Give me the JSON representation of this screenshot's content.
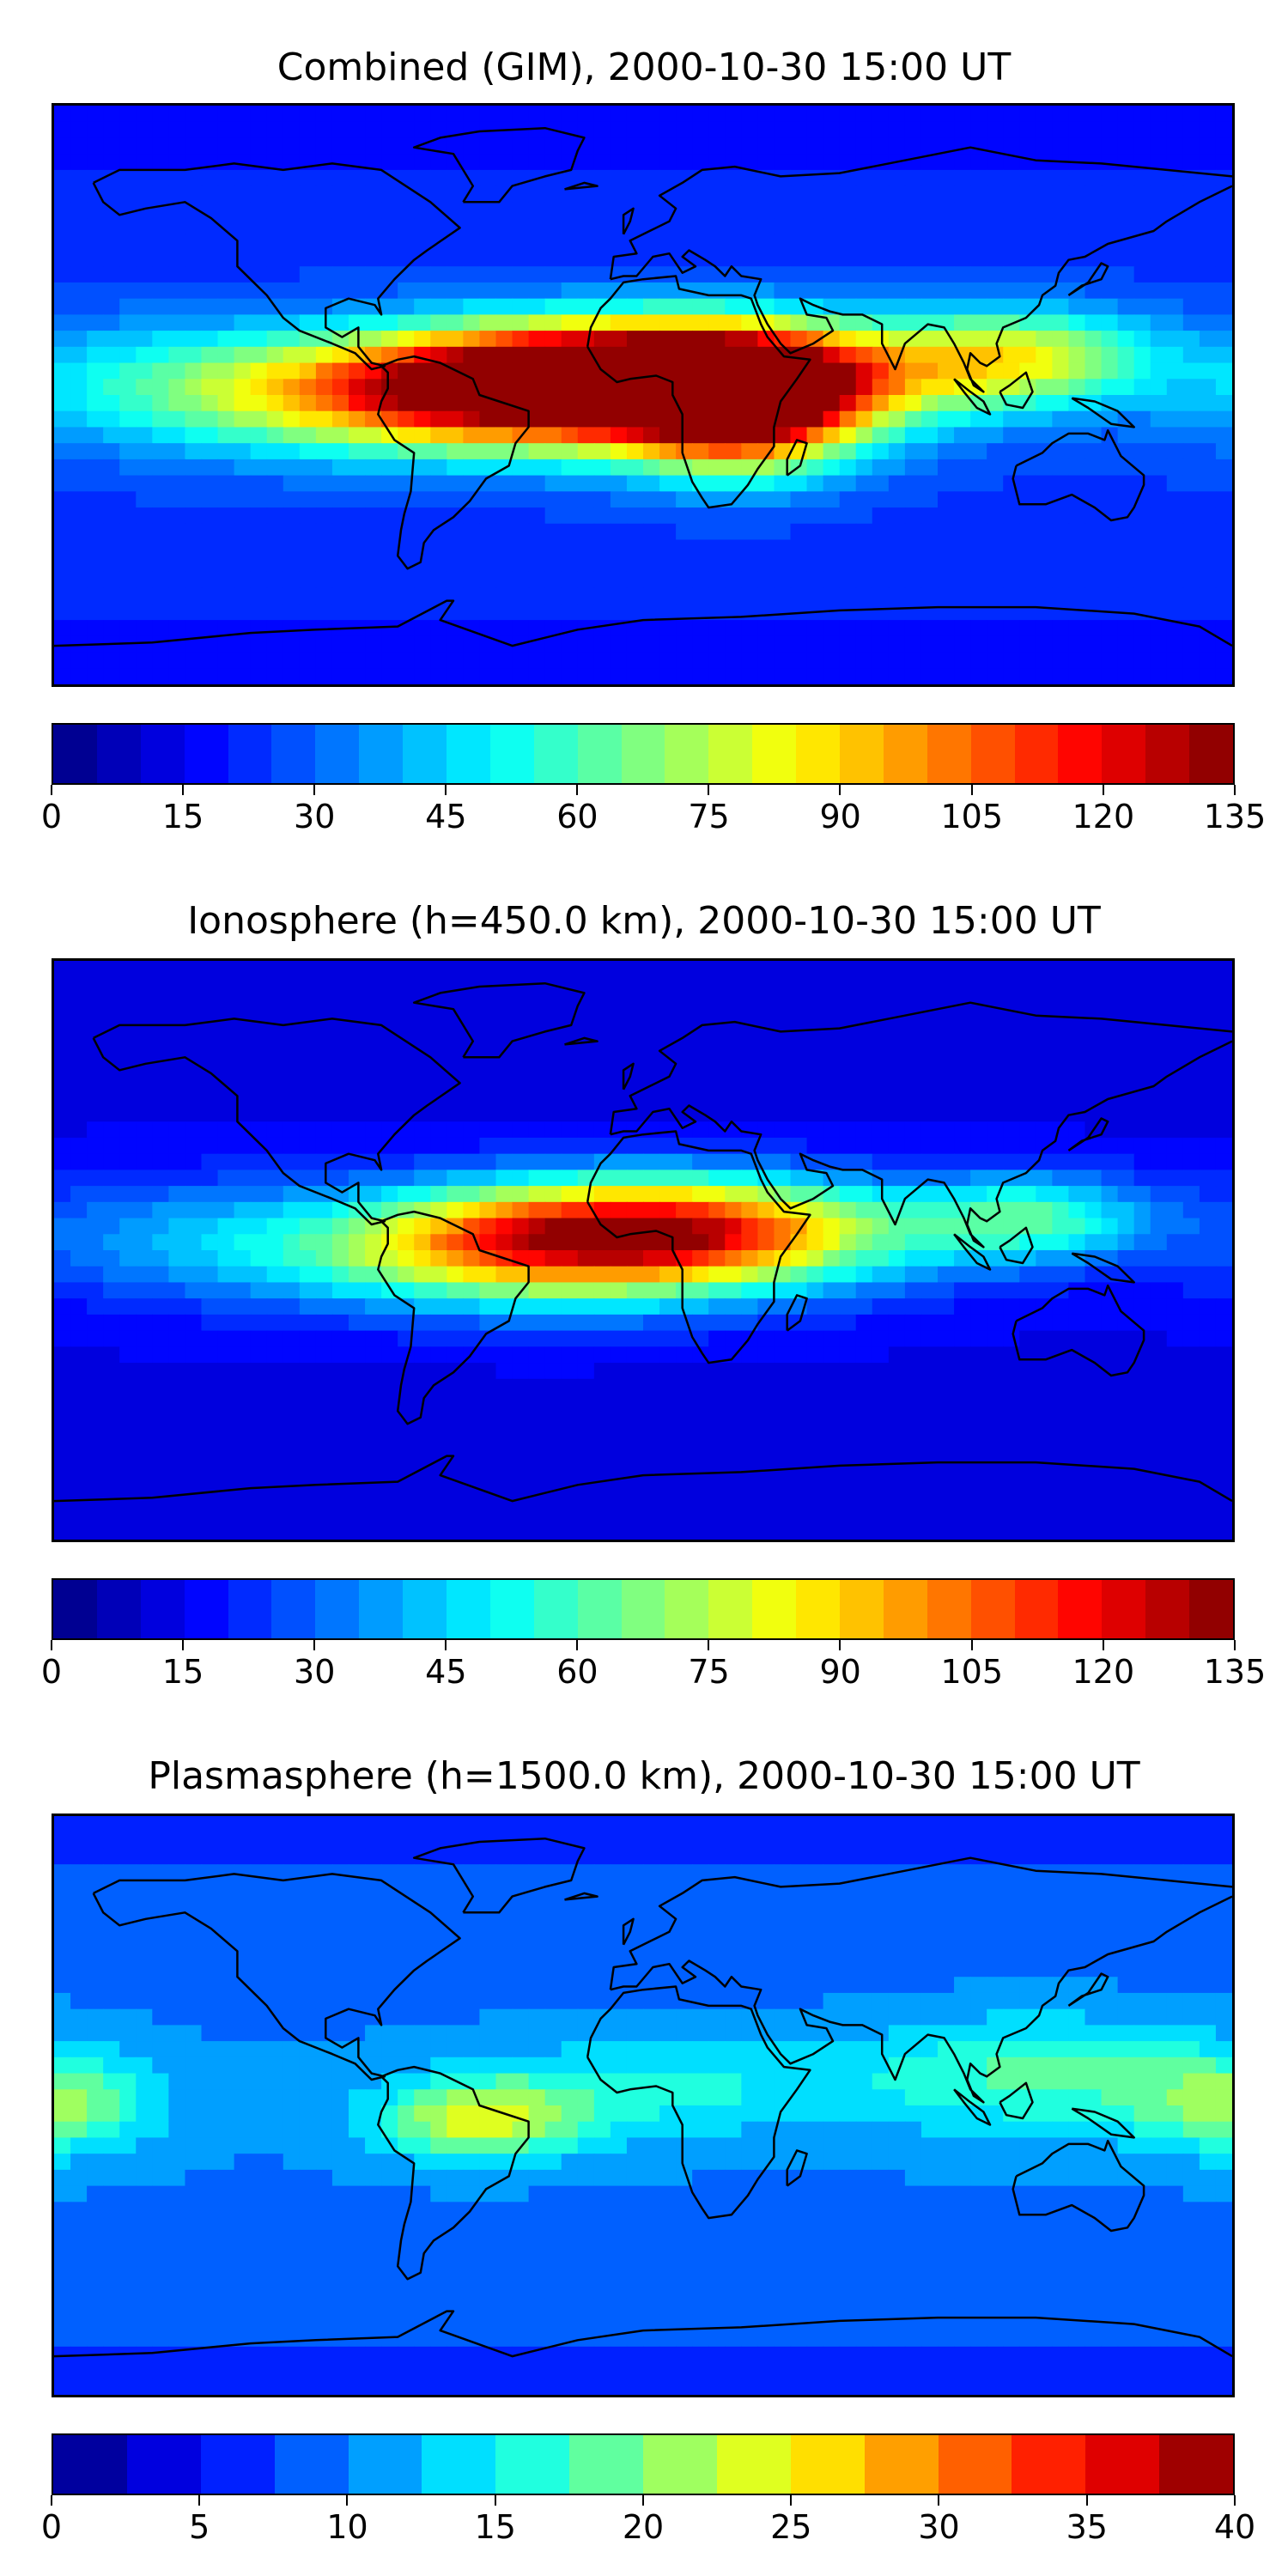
{
  "chart_data": [
    {
      "type": "heatmap",
      "title": "Combined (GIM), 2000-10-30 15:00 UT",
      "colorbar": {
        "min": 0,
        "max": 135,
        "step": 5,
        "tick_labels": [
          "0",
          "15",
          "30",
          "45",
          "60",
          "75",
          "90",
          "105",
          "120",
          "135"
        ]
      },
      "xlim": [
        -180,
        180
      ],
      "ylim": [
        -90,
        90
      ],
      "blobs": [
        {
          "lon": -40,
          "lat": 0,
          "value": 125,
          "spread_lon": 90,
          "spread_lat": 18
        },
        {
          "lon": 5,
          "lat": 8,
          "value": 120,
          "spread_lon": 75,
          "spread_lat": 16
        },
        {
          "lon": 30,
          "lat": -5,
          "value": 105,
          "spread_lon": 35,
          "spread_lat": 20
        },
        {
          "lon": 115,
          "lat": 12,
          "value": 75,
          "spread_lon": 40,
          "spread_lat": 15
        },
        {
          "lon": -150,
          "lat": 5,
          "value": 40,
          "spread_lon": 50,
          "spread_lat": 20
        }
      ],
      "background": 25
    },
    {
      "type": "heatmap",
      "title": "Ionosphere  (h=450.0 km), 2000-10-30 15:00 UT",
      "colorbar": {
        "min": 0,
        "max": 135,
        "step": 5,
        "tick_labels": [
          "0",
          "15",
          "30",
          "45",
          "60",
          "75",
          "90",
          "105",
          "120",
          "135"
        ]
      },
      "xlim": [
        -180,
        180
      ],
      "ylim": [
        -90,
        90
      ],
      "blobs": [
        {
          "lon": -30,
          "lat": 0,
          "value": 90,
          "spread_lon": 85,
          "spread_lat": 18
        },
        {
          "lon": 10,
          "lat": 8,
          "value": 85,
          "spread_lon": 70,
          "spread_lat": 16
        },
        {
          "lon": 120,
          "lat": 10,
          "value": 55,
          "spread_lon": 35,
          "spread_lat": 14
        },
        {
          "lon": -150,
          "lat": 5,
          "value": 30,
          "spread_lon": 50,
          "spread_lat": 20
        }
      ],
      "background": 15
    },
    {
      "type": "heatmap",
      "title": "Plasmasphere (h=1500.0 km), 2000-10-30 15:00 UT",
      "colorbar": {
        "min": 0,
        "max": 40,
        "step": 2.5,
        "tick_labels": [
          "0",
          "5",
          "10",
          "15",
          "20",
          "25",
          "30",
          "35",
          "40"
        ]
      },
      "xlim": [
        -180,
        180
      ],
      "ylim": [
        -90,
        90
      ],
      "blobs": [
        {
          "lon": -50,
          "lat": -5,
          "value": 23,
          "spread_lon": 30,
          "spread_lat": 12
        },
        {
          "lon": -180,
          "lat": 0,
          "value": 20,
          "spread_lon": 30,
          "spread_lat": 15
        },
        {
          "lon": 120,
          "lat": 10,
          "value": 18,
          "spread_lon": 55,
          "spread_lat": 18
        },
        {
          "lon": 0,
          "lat": 5,
          "value": 16,
          "spread_lon": 60,
          "spread_lat": 15
        }
      ],
      "background": 10
    }
  ]
}
